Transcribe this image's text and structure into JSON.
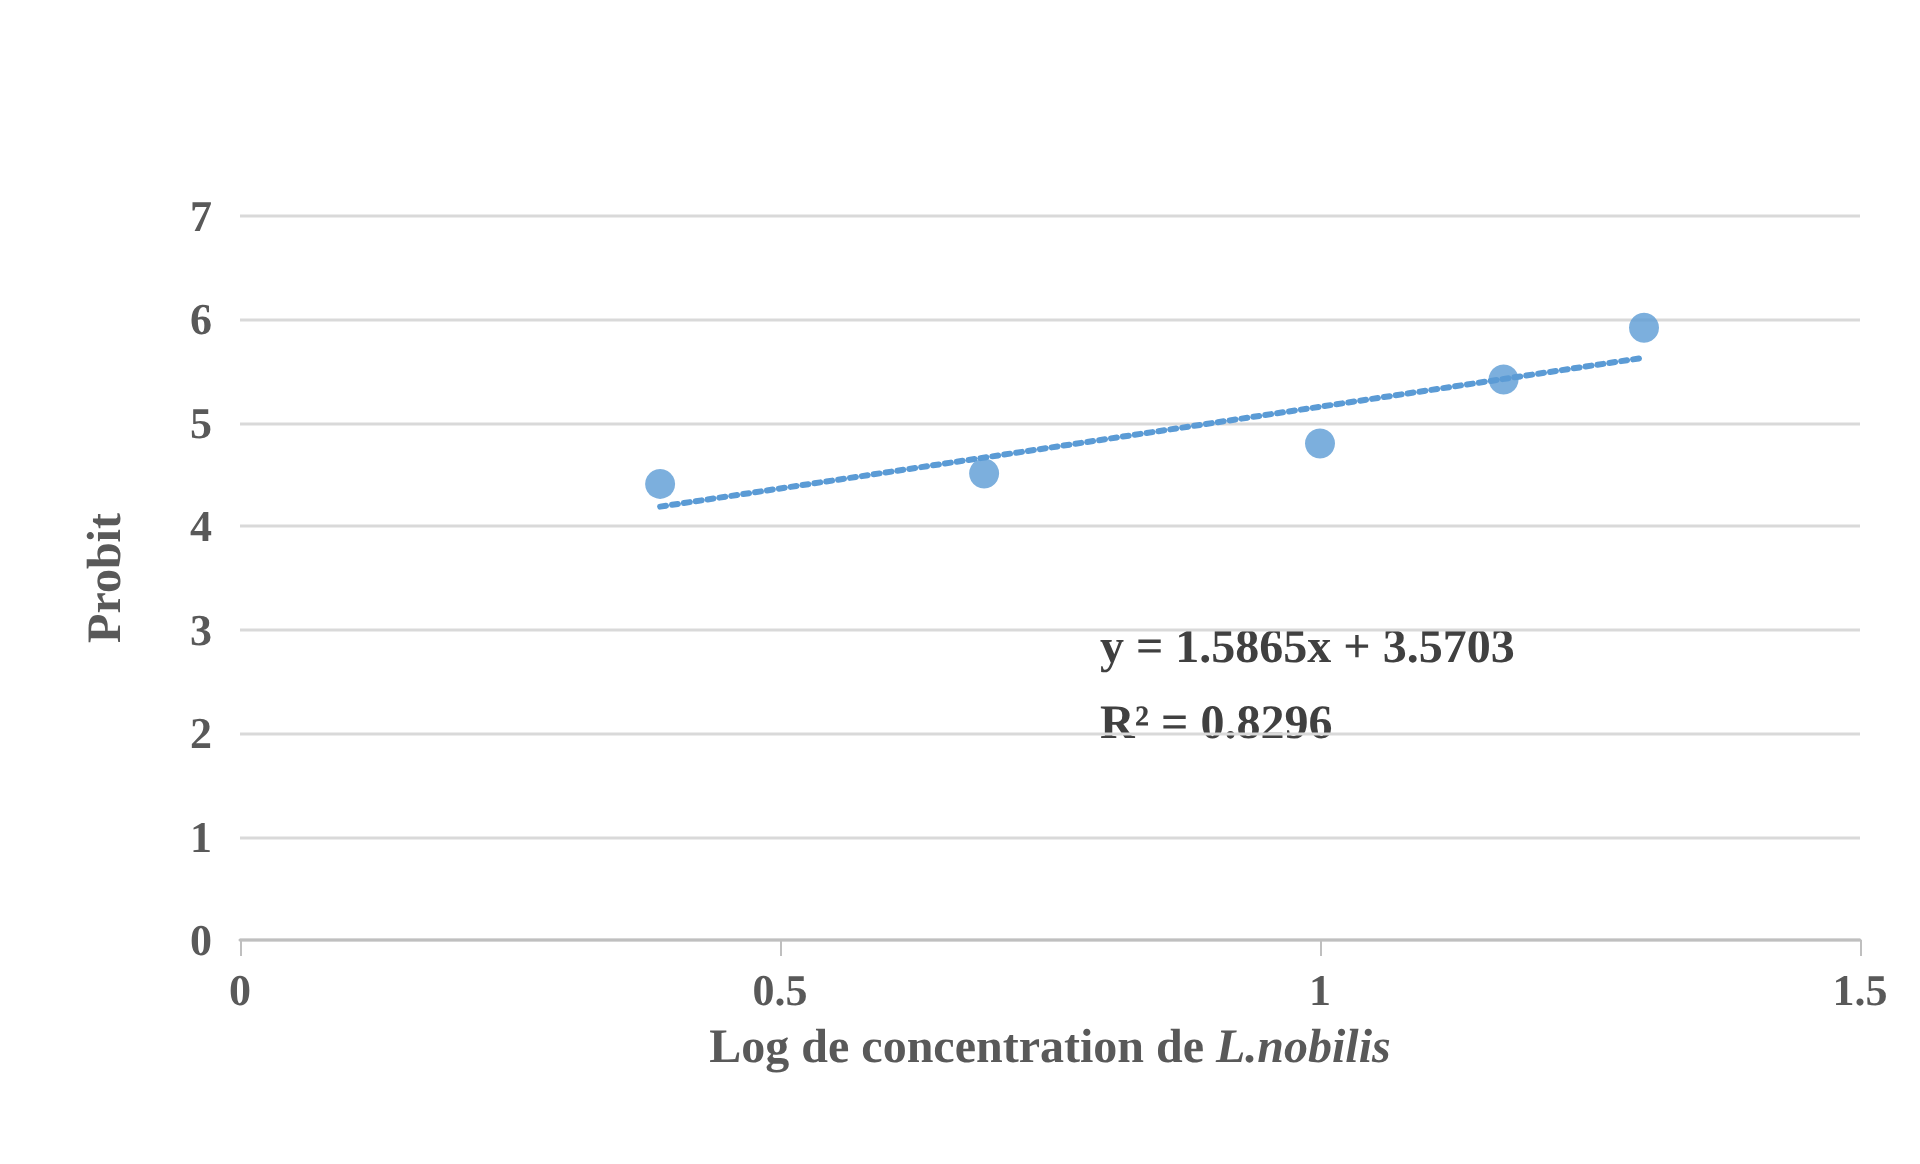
{
  "chart_data": {
    "type": "scatter",
    "xlabel": "Log de concentration de L.nobilis",
    "ylabel": "Probit",
    "series": [
      {
        "color": "#5b9bd5",
        "x": [
          0.389,
          0.689,
          1.0,
          1.17,
          1.3
        ],
        "values": [
          4.41,
          4.51,
          4.8,
          5.42,
          5.92
        ],
        "marker": "circle"
      },
      {
        "type": "line",
        "color": "#5b9bd5",
        "x": [
          0.389,
          1.3
        ],
        "values": [
          4.19,
          5.63
        ],
        "line_style": "dotted",
        "marker": "none"
      }
    ],
    "annotations": [
      "y = 1.5865x + 3.5703",
      "R² = 0.8296"
    ],
    "xlim": [
      0,
      1.5
    ],
    "xticks": [
      0,
      0.5,
      1,
      1.5
    ],
    "ylim": [
      0,
      7
    ],
    "yticks": [
      0,
      1,
      2,
      3,
      4,
      5,
      6,
      7
    ],
    "grid": "y"
  }
}
